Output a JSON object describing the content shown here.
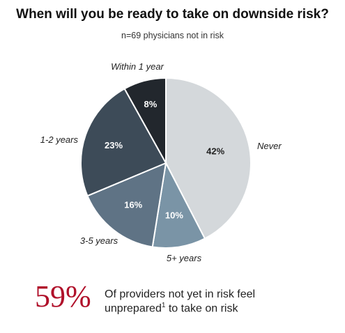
{
  "title": "When will you be ready to take on downside risk?",
  "subtitle": "n=69 physicians not in risk",
  "chart_data": {
    "type": "pie",
    "title": "When will you be ready to take on downside risk?",
    "subtitle": "n=69 physicians not in risk",
    "slices": [
      {
        "name": "Never",
        "value": 42,
        "label": "42%",
        "color": "#d4d8db",
        "label_color": "#222222"
      },
      {
        "name": "5+ years",
        "value": 10,
        "label": "10%",
        "color": "#7a94a6",
        "label_color": "#ffffff"
      },
      {
        "name": "3-5 years",
        "value": 16,
        "label": "16%",
        "color": "#5f7385",
        "label_color": "#ffffff"
      },
      {
        "name": "1-2 years",
        "value": 23,
        "label": "23%",
        "color": "#3d4b58",
        "label_color": "#ffffff"
      },
      {
        "name": "Within 1 year",
        "value": 8,
        "label": "8%",
        "color": "#22272d",
        "label_color": "#ffffff"
      }
    ],
    "start_angle": "12 o'clock",
    "direction": "clockwise"
  },
  "callout": {
    "stat": "59%",
    "text_line1": "Of providers not yet in risk feel",
    "text_line2_pre": "unprepared",
    "text_line2_sup": "1",
    "text_line2_post": " to take on risk"
  }
}
